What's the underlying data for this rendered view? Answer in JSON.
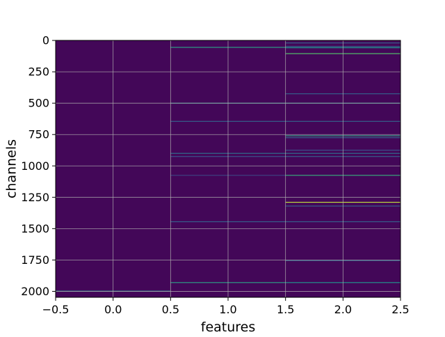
{
  "chart_data": {
    "type": "heatmap",
    "title": "",
    "xlabel": "features",
    "ylabel": "channels",
    "xlim": [
      -0.5,
      2.5
    ],
    "ylim": [
      2047.5,
      -0.5
    ],
    "y_inverted": true,
    "grid": true,
    "colormap": "viridis",
    "colormap_stops": [
      "#440154",
      "#3b528b",
      "#21918c",
      "#5ec962",
      "#fde725"
    ],
    "background_value": 0.02,
    "columns": [
      0,
      1,
      2
    ],
    "n_channels": 2048,
    "xticks": [
      -0.5,
      0.0,
      0.5,
      1.0,
      1.5,
      2.0,
      2.5
    ],
    "xtick_labels": [
      "−0.5",
      "0.0",
      "0.5",
      "1.0",
      "1.5",
      "2.0",
      "2.5"
    ],
    "yticks": [
      0,
      250,
      500,
      750,
      1000,
      1250,
      1500,
      1750,
      2000
    ],
    "ytick_labels": [
      "0",
      "250",
      "500",
      "750",
      "1000",
      "1250",
      "1500",
      "1750",
      "2000"
    ],
    "cells": [
      {
        "col": 0,
        "row": 1998,
        "value": 0.45
      },
      {
        "col": 1,
        "row": 55,
        "value": 0.55
      },
      {
        "col": 1,
        "row": 500,
        "value": 0.45
      },
      {
        "col": 1,
        "row": 645,
        "value": 0.3
      },
      {
        "col": 1,
        "row": 900,
        "value": 0.35
      },
      {
        "col": 1,
        "row": 925,
        "value": 0.25
      },
      {
        "col": 1,
        "row": 1075,
        "value": 0.2
      },
      {
        "col": 1,
        "row": 1445,
        "value": 0.3
      },
      {
        "col": 1,
        "row": 1930,
        "value": 0.55
      },
      {
        "col": 2,
        "row": 20,
        "value": 0.3
      },
      {
        "col": 2,
        "row": 48,
        "value": 0.35
      },
      {
        "col": 2,
        "row": 58,
        "value": 0.5
      },
      {
        "col": 2,
        "row": 105,
        "value": 0.7
      },
      {
        "col": 2,
        "row": 425,
        "value": 0.3
      },
      {
        "col": 2,
        "row": 500,
        "value": 0.45
      },
      {
        "col": 2,
        "row": 645,
        "value": 0.3
      },
      {
        "col": 2,
        "row": 760,
        "value": 0.55
      },
      {
        "col": 2,
        "row": 775,
        "value": 0.3
      },
      {
        "col": 2,
        "row": 875,
        "value": 0.25
      },
      {
        "col": 2,
        "row": 900,
        "value": 0.35
      },
      {
        "col": 2,
        "row": 925,
        "value": 0.3
      },
      {
        "col": 2,
        "row": 1075,
        "value": 0.6
      },
      {
        "col": 2,
        "row": 1290,
        "value": 0.9
      },
      {
        "col": 2,
        "row": 1320,
        "value": 0.3
      },
      {
        "col": 2,
        "row": 1445,
        "value": 0.3
      },
      {
        "col": 2,
        "row": 1755,
        "value": 0.3
      },
      {
        "col": 2,
        "row": 1930,
        "value": 0.5
      }
    ]
  }
}
